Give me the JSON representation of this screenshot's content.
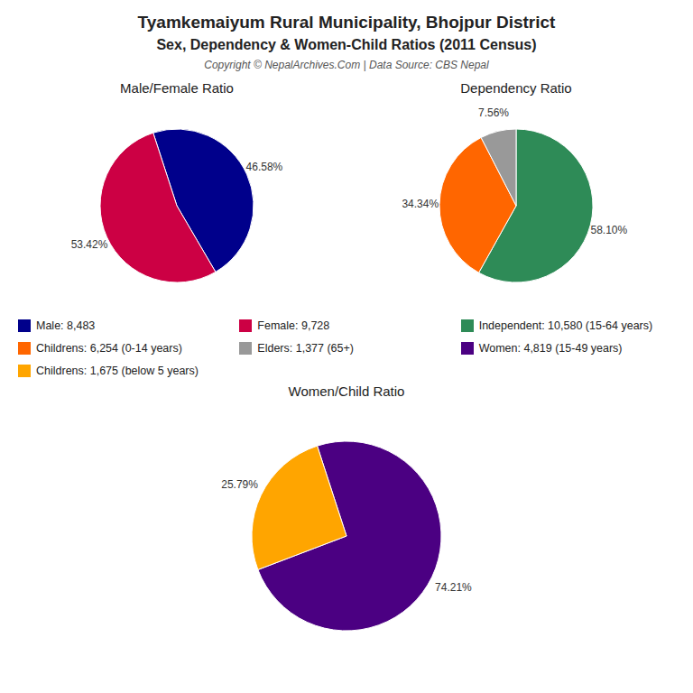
{
  "title": "Tyamkemaiyum Rural Municipality, Bhojpur District",
  "subtitle": "Sex, Dependency & Women-Child Ratios (2011 Census)",
  "annotation": "Copyright © NepalArchives.Com | Data Source: CBS Nepal",
  "chart_data": [
    {
      "type": "pie",
      "title": "Male/Female Ratio",
      "categories": [
        "Male: 8,483",
        "Female: 9,728"
      ],
      "values": [
        46.58,
        53.42
      ],
      "value_labels": [
        "46.58%",
        "53.42%"
      ],
      "colors": [
        "#00008B",
        "#CC0044"
      ],
      "data_labels": true,
      "legend": "bottom"
    },
    {
      "type": "pie",
      "title": "Dependency Ratio",
      "categories": [
        "Independent: 10,580 (15-64 years)",
        "Childrens: 6,254 (0-14 years)",
        "Elders: 1,377 (65+)"
      ],
      "values": [
        58.1,
        34.34,
        7.56
      ],
      "value_labels": [
        "58.10%",
        "34.34%",
        "7.56%"
      ],
      "colors": [
        "#2E8B57",
        "#FF6600",
        "#999999"
      ],
      "data_labels": true,
      "legend": "bottom"
    },
    {
      "type": "pie",
      "title": "Women/Child Ratio",
      "categories": [
        "Women: 4,819 (15-49 years)",
        "Childrens: 1,675 (below 5 years)"
      ],
      "values": [
        74.21,
        25.79
      ],
      "value_labels": [
        "74.21%",
        "25.79%"
      ],
      "colors": [
        "#4B0082",
        "#FFA500"
      ],
      "data_labels": true,
      "legend": "top"
    }
  ]
}
